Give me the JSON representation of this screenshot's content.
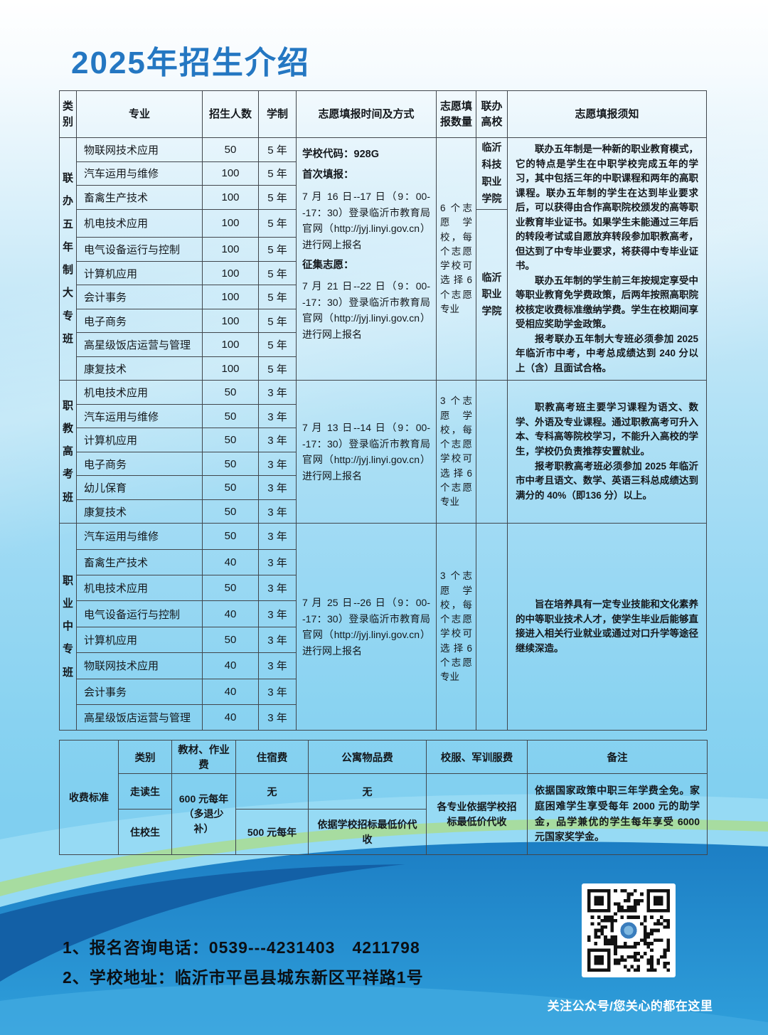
{
  "page": {
    "title": "2025年招生介绍"
  },
  "colors": {
    "title_blue": "#2477c2",
    "main_blue": "#1e86c9",
    "light_band": "#96daf4",
    "green_band": "#a9db97",
    "navy_band": "#1360a6"
  },
  "main_table": {
    "headers": [
      "类别",
      "专业",
      "招生人数",
      "学制",
      "志愿填报时间及方式",
      "志愿填报数量",
      "联办高校",
      "志愿填报须知"
    ],
    "groups": [
      {
        "category": "联办五年制大专班",
        "majors": [
          {
            "name": "物联网技术应用",
            "count": "50",
            "years": "5 年"
          },
          {
            "name": "汽车运用与维修",
            "count": "100",
            "years": "5 年"
          },
          {
            "name": "畜禽生产技术",
            "count": "100",
            "years": "5 年"
          },
          {
            "name": "机电技术应用",
            "count": "100",
            "years": "5 年"
          },
          {
            "name": "电气设备运行与控制",
            "count": "100",
            "years": "5 年"
          },
          {
            "name": "计算机应用",
            "count": "100",
            "years": "5 年"
          },
          {
            "name": "会计事务",
            "count": "100",
            "years": "5 年"
          },
          {
            "name": "电子商务",
            "count": "100",
            "years": "5 年"
          },
          {
            "name": "高星级饭店运营与管理",
            "count": "100",
            "years": "5 年"
          },
          {
            "name": "康复技术",
            "count": "100",
            "years": "5 年"
          }
        ],
        "schedule": [
          {
            "text": "学校代码：928G"
          },
          {
            "text": "首次填报："
          },
          {
            "text": "7 月 16 日--17 日（9：00--17：30）登录临沂市教育局官网（http://jyj.linyi.gov.cn）进行网上报名"
          },
          {
            "text": "征集志愿："
          },
          {
            "text": "7 月 21 日--22 日（9：00--17：30）登录临沂市教育局官网（http://jyj.linyi.gov.cn）进行网上报名"
          }
        ],
        "quota": "6 个志愿学校，每个志愿学校可选择6个志愿专业",
        "colleges": [
          "临沂科技职业学院",
          "临沂职业学院"
        ],
        "notes": [
          "联办五年制是一种新的职业教育模式，它的特点是学生在中职学校完成五年的学习，其中包括三年的中职课程和两年的高职课程。联办五年制的学生在达到毕业要求后，可以获得由合作高职院校颁发的高等职业教育毕业证书。如果学生未能通过三年后的转段考试或自愿放弃转段参加职教高考，但达到了中专毕业要求，将获得中专毕业证书。",
          "联办五年制的学生前三年按规定享受中等职业教育免学费政策，后两年按照高职院校核定收费标准缴纳学费。学生在校期间享受相应奖助学金政策。",
          "报考联办五年制大专班必须参加 2025 年临沂市中考，中考总成绩达到 240 分以上（含）且面试合格。"
        ]
      },
      {
        "category": "职教高考班",
        "majors": [
          {
            "name": "机电技术应用",
            "count": "50",
            "years": "3 年"
          },
          {
            "name": "汽车运用与维修",
            "count": "50",
            "years": "3 年"
          },
          {
            "name": "计算机应用",
            "count": "50",
            "years": "3 年"
          },
          {
            "name": "电子商务",
            "count": "50",
            "years": "3 年"
          },
          {
            "name": "幼儿保育",
            "count": "50",
            "years": "3 年"
          },
          {
            "name": "康复技术",
            "count": "50",
            "years": "3 年"
          }
        ],
        "schedule": [
          {
            "text": "7 月 13 日--14 日（9：00--17：30）登录临沂市教育局官网（http://jyj.linyi.gov.cn）进行网上报名"
          }
        ],
        "quota": "3 个志愿学校，每个志愿学校可选择6个志愿专业",
        "colleges": [],
        "notes": [
          "职教高考班主要学习课程为语文、数学、外语及专业课程。通过职教高考可升入本、专科高等院校学习，不能升入高校的学生，学校仍负责推荐安置就业。",
          "报考职教高考班必须参加 2025 年临沂市中考且语文、数学、英语三科总成绩达到满分的 40%（即136 分）以上。"
        ]
      },
      {
        "category": "职业中专班",
        "majors": [
          {
            "name": "汽车运用与维修",
            "count": "50",
            "years": "3 年"
          },
          {
            "name": "畜禽生产技术",
            "count": "40",
            "years": "3 年"
          },
          {
            "name": "机电技术应用",
            "count": "50",
            "years": "3 年"
          },
          {
            "name": "电气设备运行与控制",
            "count": "40",
            "years": "3 年"
          },
          {
            "name": "计算机应用",
            "count": "50",
            "years": "3 年"
          },
          {
            "name": "物联网技术应用",
            "count": "40",
            "years": "3 年"
          },
          {
            "name": "会计事务",
            "count": "40",
            "years": "3 年"
          },
          {
            "name": "高星级饭店运营与管理",
            "count": "40",
            "years": "3 年"
          }
        ],
        "schedule": [
          {
            "text": "7 月 25 日--26 日（9：00--17：30）登录临沂市教育局官网（http://jyj.linyi.gov.cn）进行网上报名"
          }
        ],
        "quota": "3 个志愿学校，每个志愿学校可选择6个志愿专业",
        "colleges": [],
        "notes": [
          "旨在培养具有一定专业技能和文化素养的中等职业技术人才，使学生毕业后能够直接进入相关行业就业或通过对口升学等途径继续深造。"
        ]
      }
    ]
  },
  "fee_table": {
    "label": "收费标准",
    "headers": [
      "类别",
      "教材、作业费",
      "住宿费",
      "公寓物品费",
      "校服、军训服费",
      "备注"
    ],
    "material_fee": "600 元每年（多退少补）",
    "uniform_fee": "各专业依据学校招标最低价代收",
    "remark": "依据国家政策中职三年学费全免。家庭困难学生享受每年 2000 元的助学金，品学兼优的学生每年享受 6000 元国家奖学金。",
    "rows": [
      {
        "type": "走读生",
        "dorm": "无",
        "apartment": "无"
      },
      {
        "type": "住校生",
        "dorm": "500 元每年",
        "apartment": "依据学校招标最低价代收"
      }
    ]
  },
  "footer": {
    "phone_line": "1、报名咨询电话：0539---4231403　4211798",
    "address_line": "2、学校地址：临沂市平邑县城东新区平祥路1号",
    "qr_caption": "关注公众号/您关心的都在这里"
  }
}
